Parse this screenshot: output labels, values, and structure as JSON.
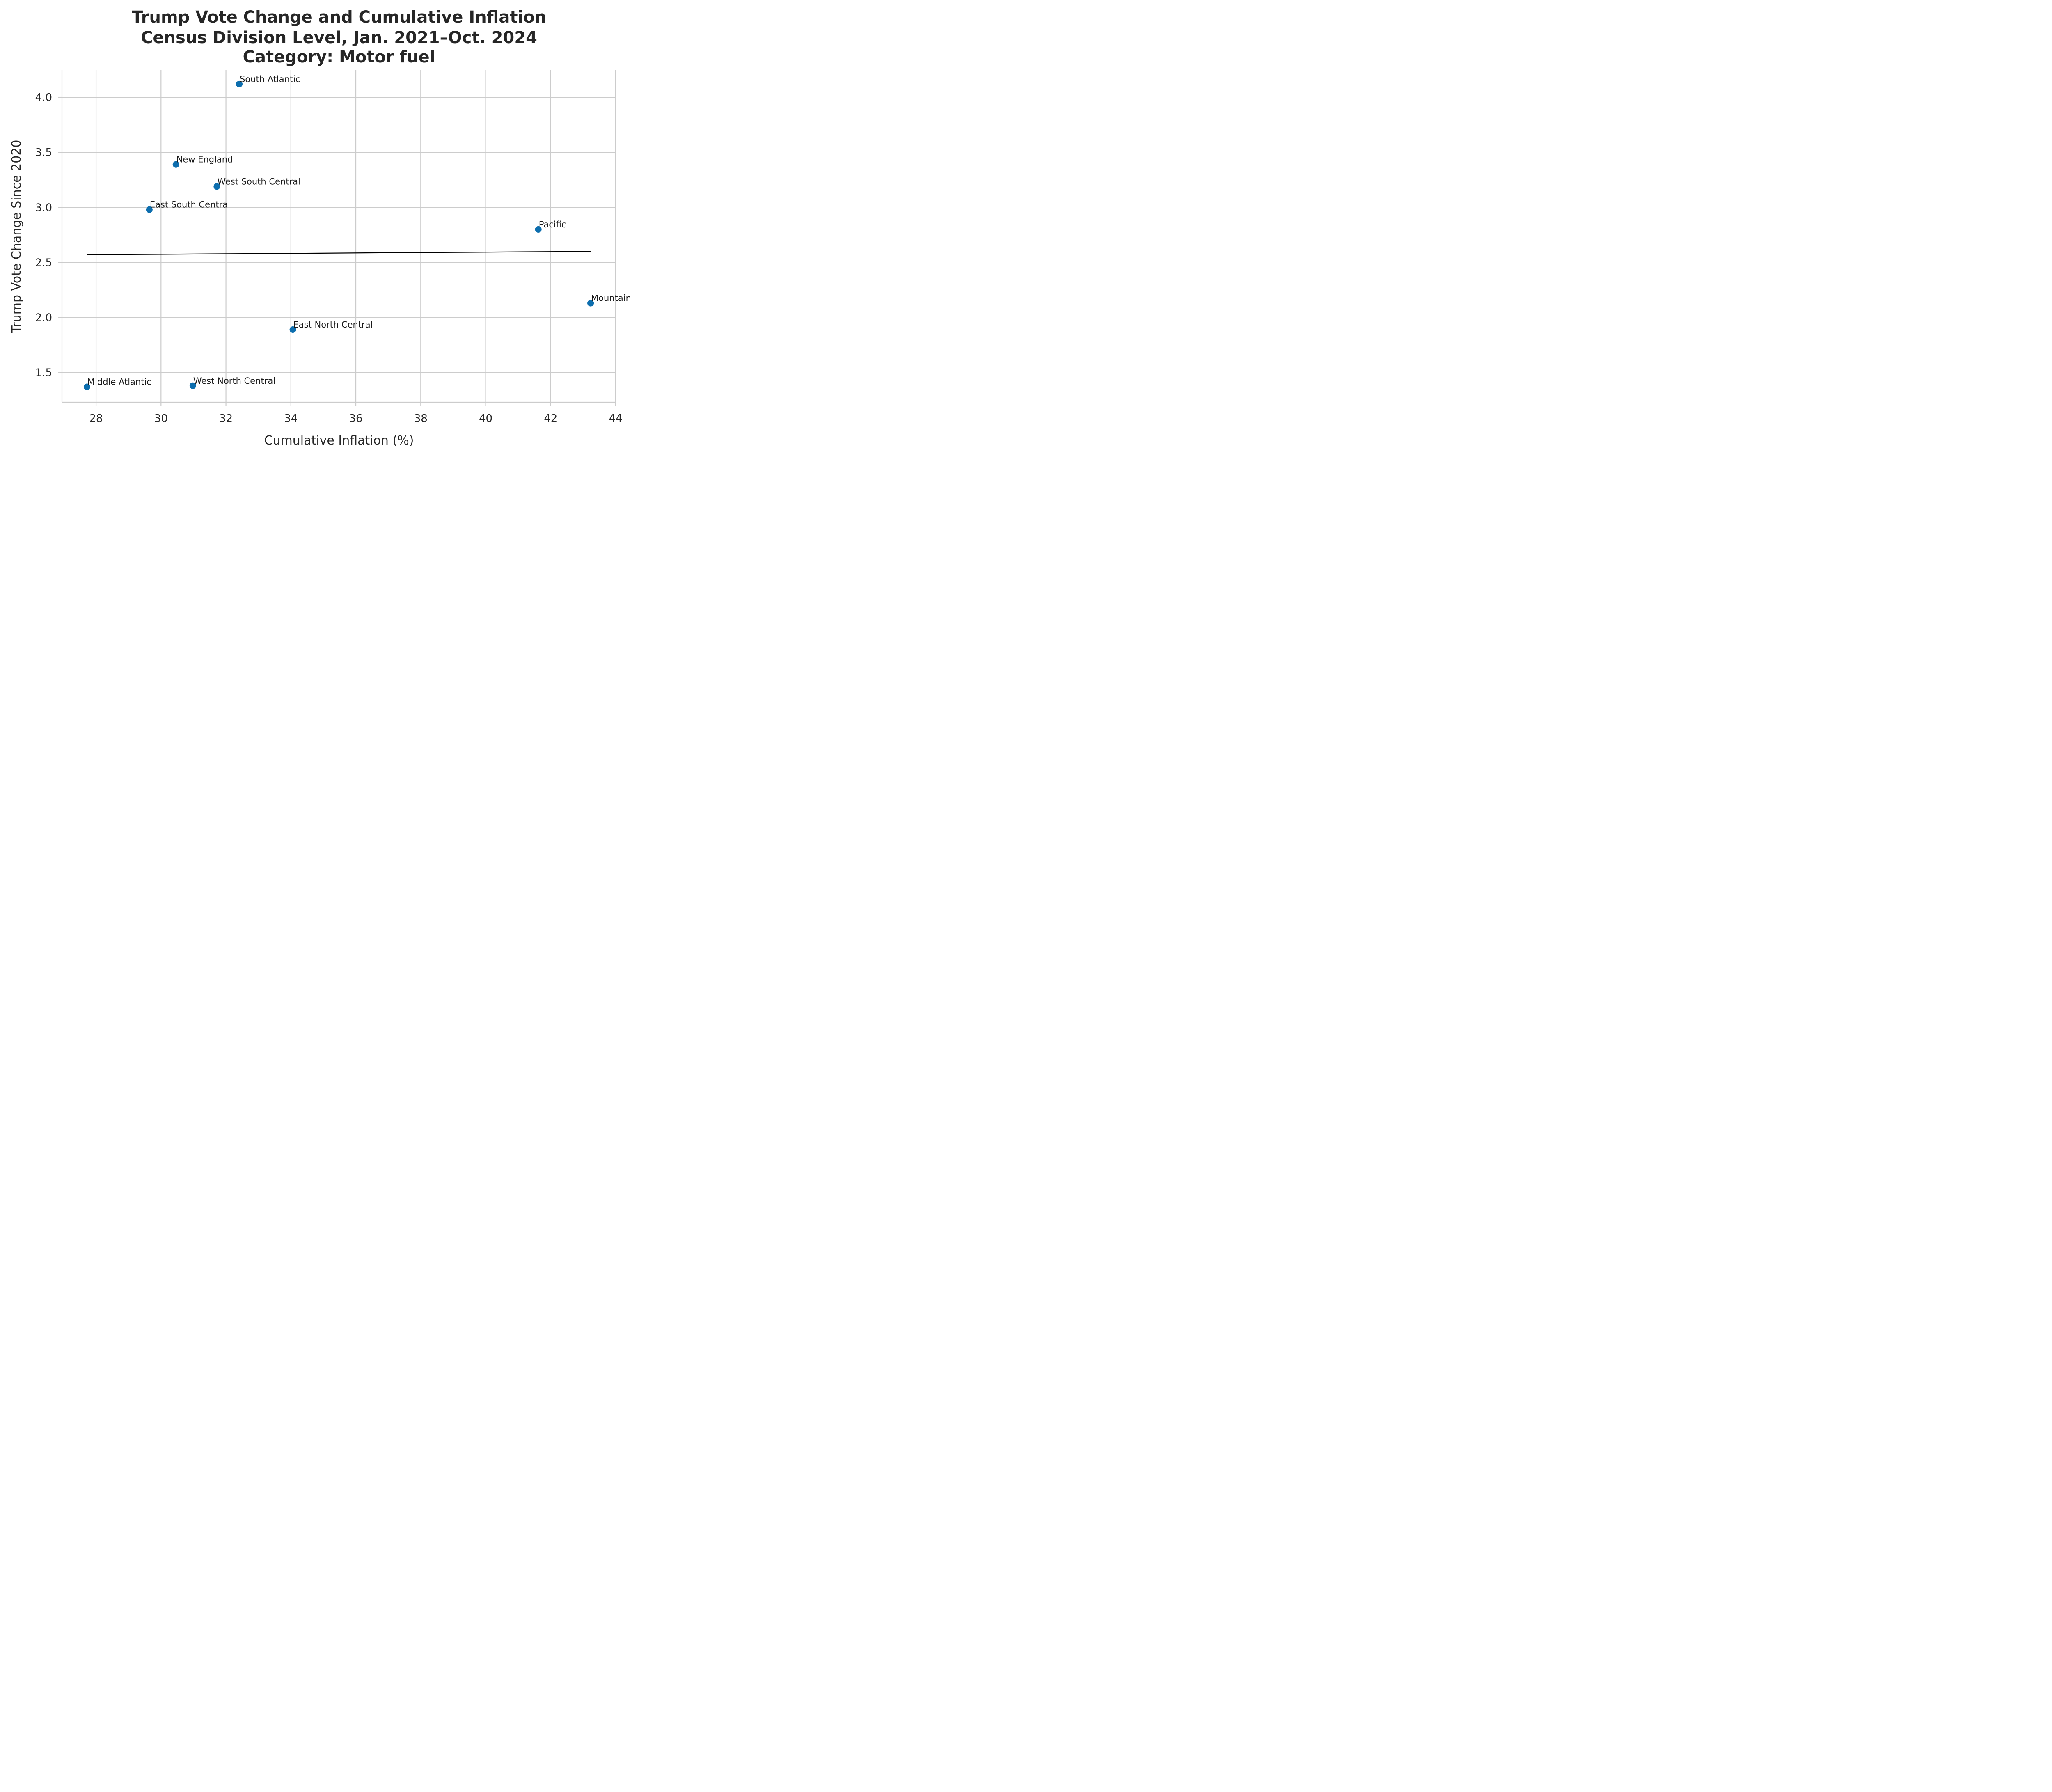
{
  "chart_data": {
    "type": "scatter",
    "title": [
      "Trump Vote Change and Cumulative Inflation",
      "Census Division Level, Jan. 2021–Oct. 2024",
      "Category: Motor fuel"
    ],
    "xlabel": "Cumulative Inflation (%)",
    "ylabel": "Trump Vote Change Since 2020",
    "xlim": [
      26.95,
      44.0
    ],
    "ylim": [
      1.23,
      4.25
    ],
    "xticks": [
      28,
      30,
      32,
      34,
      36,
      38,
      40,
      42,
      44
    ],
    "yticks": [
      1.5,
      2.0,
      2.5,
      3.0,
      3.5,
      4.0
    ],
    "grid": true,
    "point_color": "#0d6eae",
    "trend_color": "#000000",
    "points": [
      {
        "label": "South Atlantic",
        "x": 32.41,
        "y": 4.12
      },
      {
        "label": "New England",
        "x": 30.46,
        "y": 3.39
      },
      {
        "label": "West South Central",
        "x": 31.72,
        "y": 3.19
      },
      {
        "label": "East South Central",
        "x": 29.64,
        "y": 2.98
      },
      {
        "label": "Pacific",
        "x": 41.62,
        "y": 2.8
      },
      {
        "label": "Mountain",
        "x": 43.23,
        "y": 2.13
      },
      {
        "label": "East North Central",
        "x": 34.06,
        "y": 1.89
      },
      {
        "label": "Middle Atlantic",
        "x": 27.72,
        "y": 1.37
      },
      {
        "label": "West North Central",
        "x": 30.98,
        "y": 1.38
      }
    ],
    "trend_line": {
      "x": [
        27.72,
        43.23
      ],
      "y": [
        2.57,
        2.6
      ]
    }
  }
}
